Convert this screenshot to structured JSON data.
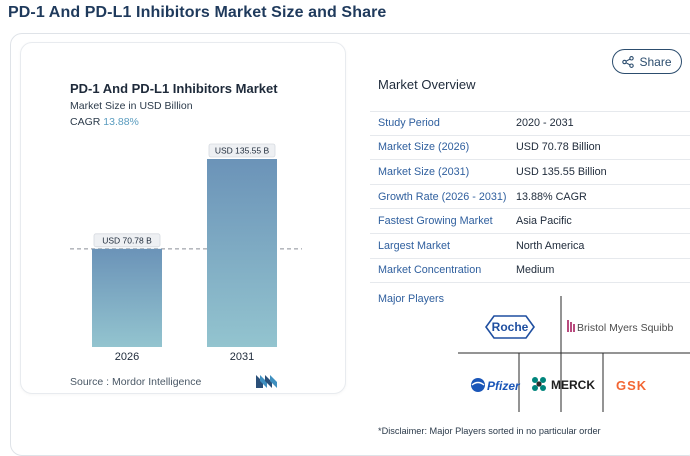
{
  "page": {
    "title": "PD-1 And PD-L1 Inhibitors Market Size and Share"
  },
  "chart_card": {
    "title": "PD-1 And PD-L1 Inhibitors Market",
    "subtitle": "Market Size in USD Billion",
    "cagr_label": "CAGR",
    "cagr_value": "13.88%",
    "source": "Source :  Mordor Intelligence"
  },
  "chart_data": {
    "type": "bar",
    "title": "PD-1 And PD-L1 Inhibitors Market",
    "categories": [
      "2026",
      "2031"
    ],
    "values": [
      70.78,
      135.55
    ],
    "data_labels": [
      "USD 70.78 B",
      "USD 135.55 B"
    ],
    "ylabel": "Market Size in USD Billion",
    "xlabel": "",
    "ylim": [
      0,
      150
    ],
    "grid": false,
    "reference_line": "dashed line at 2026 value",
    "colors": {
      "bar_top": "#6b93b8",
      "bar_bottom": "#93c4cf"
    }
  },
  "share": {
    "label": "Share"
  },
  "overview": {
    "title": "Market Overview",
    "rows": [
      {
        "label": "Study Period",
        "value": "2020 - 2031"
      },
      {
        "label": "Market Size (2026)",
        "value": "USD 70.78 Billion"
      },
      {
        "label": "Market Size (2031)",
        "value": "USD 135.55 Billion"
      },
      {
        "label": "Growth Rate (2026 - 2031)",
        "value": "13.88% CAGR"
      },
      {
        "label": "Fastest Growing Market",
        "value": "Asia Pacific"
      },
      {
        "label": "Largest Market",
        "value": "North America"
      },
      {
        "label": "Market Concentration",
        "value": "Medium"
      }
    ],
    "major_players_label": "Major Players",
    "players": [
      "Roche",
      "Bristol Myers Squibb",
      "Pfizer",
      "MERCK",
      "GSK"
    ],
    "disclaimer": "*Disclaimer: Major Players sorted in no particular order"
  },
  "colors": {
    "accent": "#2f5f9e",
    "title": "#1f3a5c",
    "cagr": "#5a9cbf"
  }
}
